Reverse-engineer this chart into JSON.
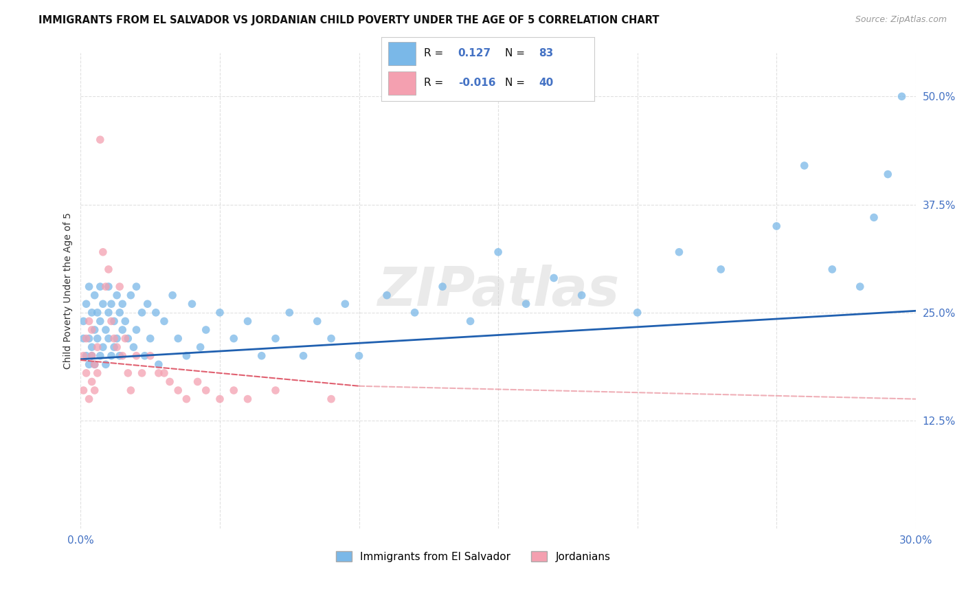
{
  "title": "IMMIGRANTS FROM EL SALVADOR VS JORDANIAN CHILD POVERTY UNDER THE AGE OF 5 CORRELATION CHART",
  "source": "Source: ZipAtlas.com",
  "ylabel": "Child Poverty Under the Age of 5",
  "xlim": [
    0.0,
    0.3
  ],
  "ylim": [
    0.0,
    0.55
  ],
  "yticks": [
    0.125,
    0.25,
    0.375,
    0.5
  ],
  "ytick_labels": [
    "12.5%",
    "25.0%",
    "37.5%",
    "50.0%"
  ],
  "xticks": [
    0.0,
    0.05,
    0.1,
    0.15,
    0.2,
    0.25,
    0.3
  ],
  "xtick_labels": [
    "0.0%",
    "",
    "",
    "",
    "",
    "",
    "30.0%"
  ],
  "background_color": "#ffffff",
  "grid_color": "#dddddd",
  "watermark": "ZIPatlas",
  "legend_R1": "0.127",
  "legend_N1": "83",
  "legend_R2": "-0.016",
  "legend_N2": "40",
  "blue_color": "#7ab8e8",
  "pink_color": "#f4a0b0",
  "blue_line_color": "#2060b0",
  "pink_line_color": "#e06070",
  "salvador_x": [
    0.001,
    0.001,
    0.002,
    0.002,
    0.003,
    0.003,
    0.003,
    0.004,
    0.004,
    0.004,
    0.005,
    0.005,
    0.005,
    0.006,
    0.006,
    0.007,
    0.007,
    0.007,
    0.008,
    0.008,
    0.009,
    0.009,
    0.01,
    0.01,
    0.01,
    0.011,
    0.011,
    0.012,
    0.012,
    0.013,
    0.013,
    0.014,
    0.014,
    0.015,
    0.015,
    0.016,
    0.017,
    0.018,
    0.019,
    0.02,
    0.02,
    0.022,
    0.023,
    0.024,
    0.025,
    0.027,
    0.028,
    0.03,
    0.033,
    0.035,
    0.038,
    0.04,
    0.043,
    0.045,
    0.05,
    0.055,
    0.06,
    0.065,
    0.07,
    0.075,
    0.08,
    0.085,
    0.09,
    0.095,
    0.1,
    0.11,
    0.12,
    0.13,
    0.14,
    0.15,
    0.16,
    0.17,
    0.18,
    0.2,
    0.215,
    0.23,
    0.25,
    0.26,
    0.27,
    0.28,
    0.285,
    0.29,
    0.295
  ],
  "salvador_y": [
    0.22,
    0.24,
    0.2,
    0.26,
    0.19,
    0.22,
    0.28,
    0.21,
    0.25,
    0.2,
    0.23,
    0.19,
    0.27,
    0.22,
    0.25,
    0.2,
    0.24,
    0.28,
    0.21,
    0.26,
    0.23,
    0.19,
    0.25,
    0.22,
    0.28,
    0.2,
    0.26,
    0.24,
    0.21,
    0.27,
    0.22,
    0.25,
    0.2,
    0.23,
    0.26,
    0.24,
    0.22,
    0.27,
    0.21,
    0.28,
    0.23,
    0.25,
    0.2,
    0.26,
    0.22,
    0.25,
    0.19,
    0.24,
    0.27,
    0.22,
    0.2,
    0.26,
    0.21,
    0.23,
    0.25,
    0.22,
    0.24,
    0.2,
    0.22,
    0.25,
    0.2,
    0.24,
    0.22,
    0.26,
    0.2,
    0.27,
    0.25,
    0.28,
    0.24,
    0.32,
    0.26,
    0.29,
    0.27,
    0.25,
    0.32,
    0.3,
    0.35,
    0.42,
    0.3,
    0.28,
    0.36,
    0.41,
    0.5
  ],
  "jordanian_x": [
    0.001,
    0.001,
    0.002,
    0.002,
    0.003,
    0.003,
    0.004,
    0.004,
    0.004,
    0.005,
    0.005,
    0.006,
    0.006,
    0.007,
    0.008,
    0.009,
    0.01,
    0.011,
    0.012,
    0.013,
    0.014,
    0.015,
    0.016,
    0.017,
    0.018,
    0.02,
    0.022,
    0.025,
    0.028,
    0.03,
    0.032,
    0.035,
    0.038,
    0.042,
    0.045,
    0.05,
    0.055,
    0.06,
    0.07,
    0.09
  ],
  "jordanian_y": [
    0.2,
    0.16,
    0.22,
    0.18,
    0.24,
    0.15,
    0.2,
    0.17,
    0.23,
    0.19,
    0.16,
    0.21,
    0.18,
    0.45,
    0.32,
    0.28,
    0.3,
    0.24,
    0.22,
    0.21,
    0.28,
    0.2,
    0.22,
    0.18,
    0.16,
    0.2,
    0.18,
    0.2,
    0.18,
    0.18,
    0.17,
    0.16,
    0.15,
    0.17,
    0.16,
    0.15,
    0.16,
    0.15,
    0.16,
    0.15
  ],
  "blue_line_x": [
    0.0,
    0.3
  ],
  "blue_line_y": [
    0.196,
    0.252
  ],
  "pink_line_x": [
    0.0,
    0.1
  ],
  "pink_line_y": [
    0.195,
    0.165
  ]
}
